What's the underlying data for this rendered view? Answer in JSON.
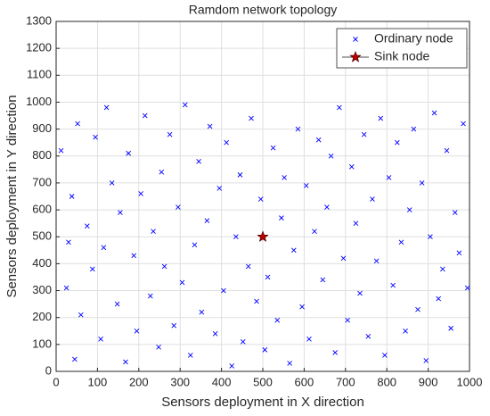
{
  "chart_data": {
    "type": "scatter",
    "title": "Ramdom network topology",
    "x_label": "Sensors deployment in X direction",
    "y_label": "Sensors deployment in Y direction",
    "xlim": [
      0,
      1000
    ],
    "xticks": [
      0,
      100,
      200,
      300,
      400,
      500,
      600,
      700,
      800,
      900,
      1000
    ],
    "ylim": [
      0,
      1300
    ],
    "yticks": [
      0,
      100,
      200,
      300,
      400,
      500,
      600,
      700,
      800,
      900,
      1000,
      1100,
      1200,
      1300
    ],
    "grid": true,
    "legend": "upper right",
    "series": [
      {
        "name": "Ordinary node",
        "color": "#0000ff",
        "marker": "x",
        "x": [
          12,
          25,
          38,
          45,
          52,
          60,
          75,
          88,
          95,
          108,
          115,
          122,
          135,
          148,
          155,
          168,
          175,
          188,
          195,
          205,
          215,
          228,
          235,
          248,
          255,
          262,
          275,
          285,
          295,
          305,
          312,
          325,
          335,
          345,
          352,
          365,
          372,
          385,
          395,
          405,
          412,
          425,
          435,
          445,
          452,
          465,
          472,
          485,
          495,
          505,
          512,
          525,
          535,
          545,
          552,
          565,
          575,
          585,
          595,
          605,
          612,
          625,
          635,
          645,
          655,
          665,
          675,
          685,
          695,
          705,
          715,
          725,
          735,
          745,
          755,
          765,
          775,
          785,
          795,
          805,
          815,
          825,
          835,
          845,
          855,
          865,
          875,
          885,
          895,
          905,
          915,
          925,
          935,
          945,
          955,
          965,
          975,
          985,
          995,
          30
        ],
        "values": [
          820,
          310,
          650,
          45,
          920,
          210,
          540,
          380,
          870,
          120,
          460,
          980,
          700,
          250,
          590,
          35,
          810,
          430,
          150,
          660,
          950,
          280,
          520,
          90,
          740,
          390,
          880,
          170,
          610,
          330,
          990,
          60,
          470,
          780,
          220,
          560,
          910,
          140,
          680,
          300,
          850,
          20,
          500,
          730,
          110,
          390,
          940,
          260,
          640,
          80,
          350,
          830,
          190,
          570,
          720,
          30,
          450,
          900,
          240,
          690,
          120,
          520,
          860,
          340,
          610,
          800,
          70,
          980,
          420,
          190,
          760,
          550,
          290,
          880,
          130,
          640,
          410,
          940,
          60,
          720,
          320,
          850,
          480,
          150,
          600,
          900,
          230,
          700,
          40,
          500,
          960,
          270,
          380,
          820,
          160,
          590,
          440,
          920,
          310,
          480
        ]
      },
      {
        "name": "Sink node",
        "color": "#c00000",
        "marker": "star",
        "x": [
          500
        ],
        "values": [
          500
        ]
      }
    ]
  }
}
